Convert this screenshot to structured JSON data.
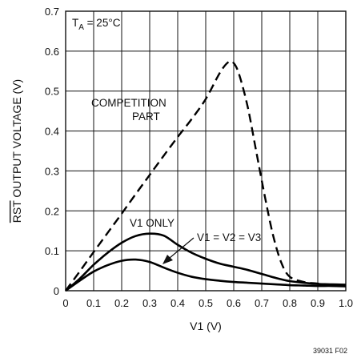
{
  "chart_data": {
    "type": "line",
    "title": "",
    "xlabel": "V1 (V)",
    "ylabel": "RST OUTPUT VOLTAGE (V)",
    "ylabel_overline_part": "RST",
    "ylabel_rest": " OUTPUT VOLTAGE (V)",
    "xlim": [
      0,
      1.0
    ],
    "ylim": [
      0,
      0.7
    ],
    "grid": true,
    "x_ticks": [
      "0",
      "0.1",
      "0.2",
      "0.3",
      "0.4",
      "0.5",
      "0.6",
      "0.7",
      "0.8",
      "0.9",
      "1.0"
    ],
    "y_ticks": [
      "0",
      "0.1",
      "0.2",
      "0.3",
      "0.4",
      "0.5",
      "0.6",
      "0.7"
    ],
    "condition": {
      "prefix": "T",
      "subscript": "A",
      "suffix": " = 25°C"
    },
    "series": [
      {
        "name": "COMPETITION PART",
        "style": "dashed",
        "x": [
          0,
          0.05,
          0.1,
          0.15,
          0.2,
          0.25,
          0.3,
          0.35,
          0.4,
          0.45,
          0.5,
          0.55,
          0.58,
          0.6,
          0.62,
          0.65,
          0.68,
          0.71,
          0.74,
          0.77,
          0.8,
          0.85,
          0.9,
          0.95,
          1.0
        ],
        "y": [
          0,
          0.048,
          0.097,
          0.145,
          0.193,
          0.242,
          0.29,
          0.338,
          0.385,
          0.43,
          0.48,
          0.545,
          0.572,
          0.57,
          0.54,
          0.46,
          0.35,
          0.24,
          0.14,
          0.07,
          0.035,
          0.022,
          0.018,
          0.015,
          0.015
        ]
      },
      {
        "name": "V1 ONLY",
        "style": "solid",
        "x": [
          0,
          0.05,
          0.1,
          0.15,
          0.2,
          0.25,
          0.3,
          0.35,
          0.4,
          0.45,
          0.5,
          0.55,
          0.6,
          0.65,
          0.7,
          0.75,
          0.8,
          0.85,
          0.9,
          0.95,
          1.0
        ],
        "y": [
          0,
          0.03,
          0.065,
          0.095,
          0.12,
          0.137,
          0.143,
          0.138,
          0.115,
          0.095,
          0.08,
          0.068,
          0.06,
          0.052,
          0.042,
          0.032,
          0.024,
          0.02,
          0.017,
          0.016,
          0.015
        ]
      },
      {
        "name": "V1 = V2 = V3",
        "style": "solid",
        "x": [
          0,
          0.05,
          0.1,
          0.15,
          0.2,
          0.25,
          0.3,
          0.35,
          0.4,
          0.45,
          0.5,
          0.55,
          0.6,
          0.65,
          0.7,
          0.75,
          0.8,
          0.85,
          0.9,
          0.95,
          1.0
        ],
        "y": [
          0,
          0.025,
          0.048,
          0.064,
          0.075,
          0.078,
          0.072,
          0.058,
          0.045,
          0.035,
          0.029,
          0.025,
          0.022,
          0.02,
          0.018,
          0.016,
          0.014,
          0.013,
          0.012,
          0.012,
          0.011
        ]
      }
    ],
    "annotations": [
      {
        "lines": [
          "COMPETITION",
          "PART"
        ]
      },
      {
        "lines": [
          "V1 ONLY"
        ]
      },
      {
        "lines": [
          "V1 = V2 = V3"
        ]
      }
    ],
    "figure_id": "39031 F02"
  }
}
